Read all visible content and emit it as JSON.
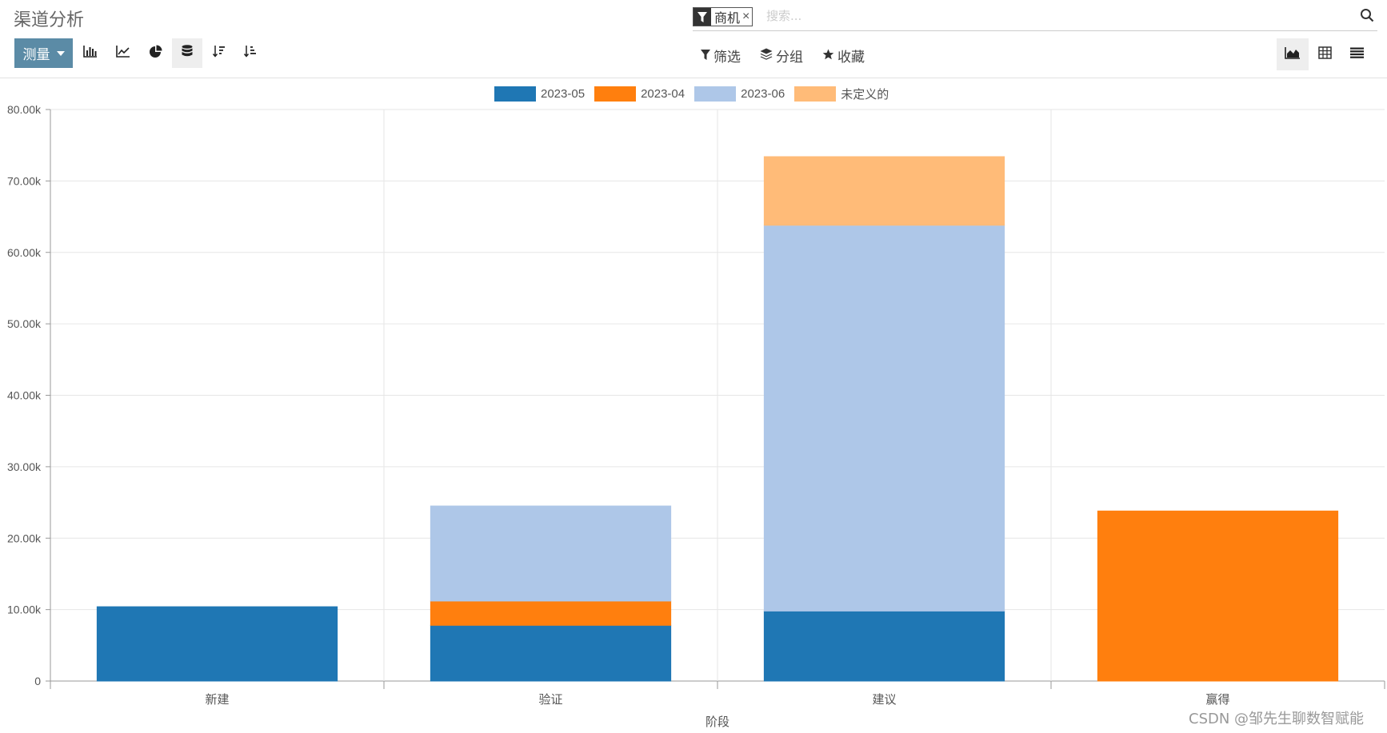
{
  "header": {
    "title": "渠道分析"
  },
  "search": {
    "facet_label": "商机",
    "facet_close": "×",
    "placeholder": "搜索..."
  },
  "toolbar": {
    "measure_label": "测量",
    "filter_label": "筛选",
    "group_label": "分组",
    "favorite_label": "收藏"
  },
  "colors": {
    "series": [
      "#1f77b4",
      "#ff7f0e",
      "#aec7e8",
      "#ffbb78"
    ],
    "measure_button": "#5b8ba6"
  },
  "chart_data": {
    "type": "bar",
    "stacked": true,
    "categories": [
      "新建",
      "验证",
      "建议",
      "赢得"
    ],
    "series": [
      {
        "name": "2023-05",
        "values": [
          10400,
          7800,
          9800,
          0
        ]
      },
      {
        "name": "2023-04",
        "values": [
          0,
          3400,
          0,
          23800
        ]
      },
      {
        "name": "2023-06",
        "values": [
          0,
          13300,
          54000,
          0
        ]
      },
      {
        "name": "未定义的",
        "values": [
          0,
          0,
          9600,
          0
        ]
      }
    ],
    "xlabel": "阶段",
    "ylabel": "",
    "ylim": [
      0,
      80000
    ],
    "yticks": [
      "0",
      "10.00k",
      "20.00k",
      "30.00k",
      "40.00k",
      "50.00k",
      "60.00k",
      "70.00k",
      "80.00k"
    ],
    "grid": true,
    "legend": "top-center"
  },
  "watermark": "CSDN @邹先生聊数智赋能"
}
